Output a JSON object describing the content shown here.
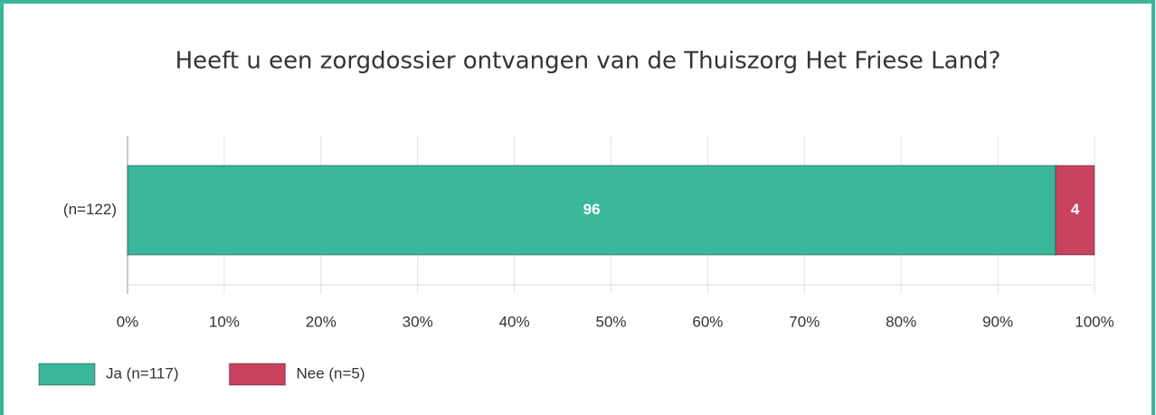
{
  "chart_data": {
    "type": "stacked_barh",
    "title": "Heeft u een zorgdossier ontvangen van de Thuiszorg Het Friese Land?",
    "categories": [
      "(n=122)"
    ],
    "series": [
      {
        "name": "Ja (n=117)",
        "color": "#3ab69b",
        "values": [
          96
        ]
      },
      {
        "name": "Nee (n=5)",
        "color": "#c9435f",
        "values": [
          4
        ]
      }
    ],
    "xlim": [
      0,
      100
    ],
    "xticks": [
      {
        "value": 0,
        "label": "0%"
      },
      {
        "value": 10,
        "label": "10%"
      },
      {
        "value": 20,
        "label": "20%"
      },
      {
        "value": 30,
        "label": "30%"
      },
      {
        "value": 40,
        "label": "40%"
      },
      {
        "value": 50,
        "label": "50%"
      },
      {
        "value": 60,
        "label": "60%"
      },
      {
        "value": 70,
        "label": "70%"
      },
      {
        "value": 80,
        "label": "80%"
      },
      {
        "value": 90,
        "label": "90%"
      },
      {
        "value": 100,
        "label": "100%"
      }
    ],
    "grid": true,
    "legend": "bottom"
  }
}
